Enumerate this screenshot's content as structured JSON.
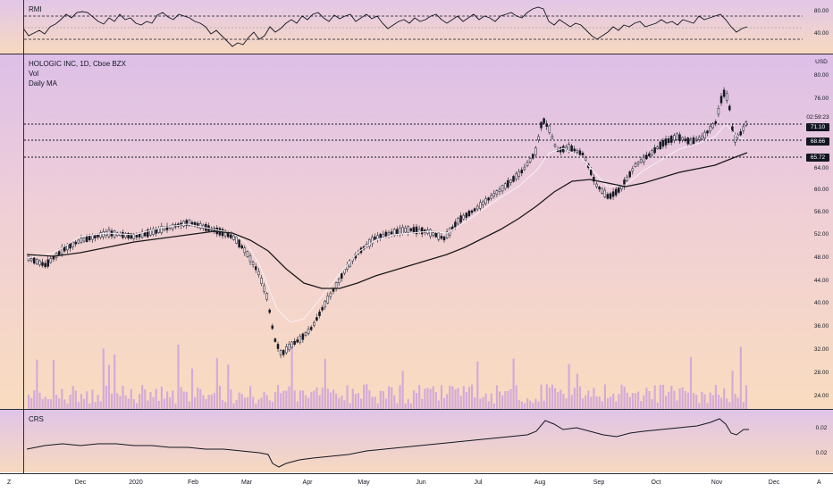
{
  "rmi": {
    "label": "RMI",
    "ticks": [
      "80.00",
      "40.00"
    ]
  },
  "main": {
    "symbol": "HOLOGIC INC, 1D, Cboe BZX",
    "vol_label": "Vol",
    "ma_label": "Daily MA",
    "currency": "USD",
    "ticks": [
      "80.00",
      "76.00",
      "64.00",
      "60.00",
      "56.00",
      "52.00",
      "48.00",
      "44.00",
      "40.00",
      "36.00",
      "32.00",
      "28.00",
      "24.00"
    ],
    "countdown": "02:59:23",
    "levels": [
      "71.10",
      "68.66",
      "65.72"
    ]
  },
  "crs": {
    "label": "CRS",
    "ticks": [
      "0.02",
      "0.02"
    ]
  },
  "time_axis": {
    "corner_left": "Z",
    "corner_right": "A",
    "labels": [
      "Dec",
      "2020",
      "Feb",
      "Mar",
      "Apr",
      "May",
      "Jun",
      "Jul",
      "Aug",
      "Sep",
      "Oct",
      "Nov",
      "Dec"
    ]
  },
  "colors": {
    "candle": "#131722",
    "ma_long": "#1a1a1a",
    "ma_short": "#f7f0f5",
    "volume": "#c89ae0",
    "level_line": "#131722"
  }
}
